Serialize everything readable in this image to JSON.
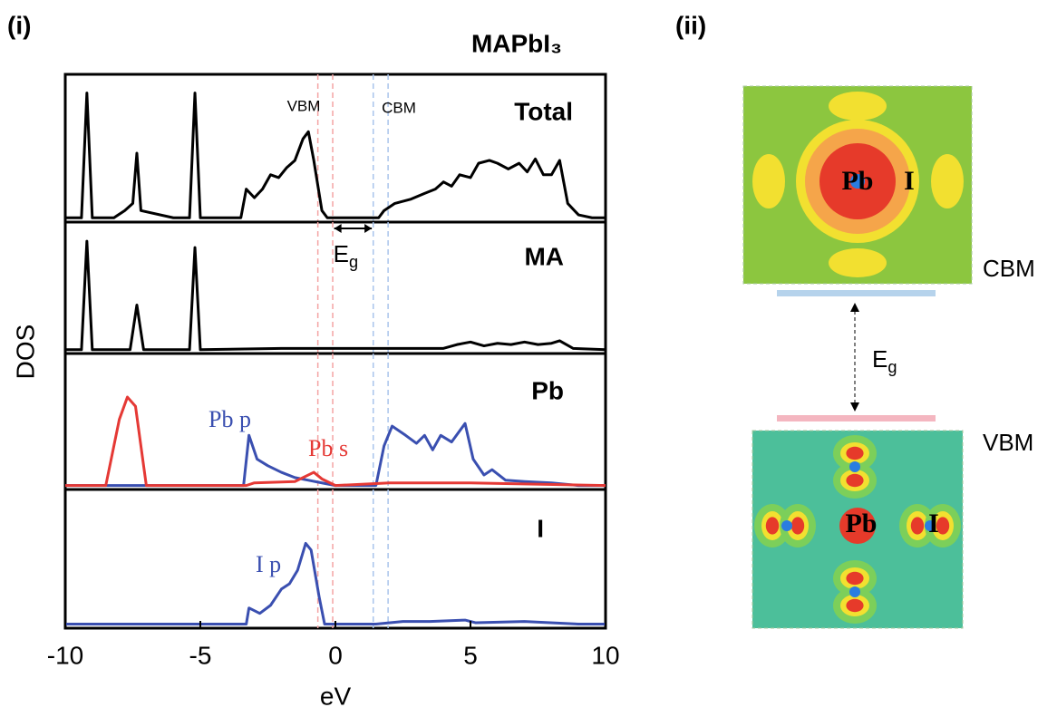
{
  "figure": {
    "panel_i_label": "(i)",
    "panel_ii_label": "(ii)",
    "compound": "MAPbI₃",
    "vbm_label": "VBM",
    "cbm_label": "CBM",
    "eg_symbol": "E",
    "eg_subscript": "g",
    "reference_lines": [
      {
        "x": -0.65,
        "color": "#f4a3a3"
      },
      {
        "x": -0.1,
        "color": "#f4a3a3"
      },
      {
        "x": 1.4,
        "color": "#a9c4ec"
      },
      {
        "x": 1.95,
        "color": "#a9c4ec"
      }
    ],
    "panel_ii": {
      "cbm_label": "CBM",
      "vbm_label": "VBM",
      "eg_symbol": "E",
      "eg_subscript": "g",
      "cbm_atoms": [
        "Pb",
        "I"
      ],
      "vbm_atoms": [
        "Pb",
        "I"
      ]
    }
  },
  "chart_data": [
    {
      "type": "line",
      "title": "Total",
      "xlim": [
        -10,
        10
      ],
      "ylim": [
        -0.03,
        1
      ],
      "series": [
        {
          "color": "#000000",
          "x": [
            -10,
            -9.4,
            -9.2,
            -9.0,
            -8.2,
            -7.8,
            -7.5,
            -7.35,
            -7.2,
            -6,
            -5.4,
            -5.2,
            -5.0,
            -3.5,
            -3.3,
            -3.0,
            -2.7,
            -2.4,
            -2.1,
            -1.8,
            -1.5,
            -1.2,
            -1.0,
            -0.8,
            -0.5,
            -0.3,
            1.6,
            1.8,
            2.2,
            2.8,
            3.3,
            3.7,
            4.0,
            4.3,
            4.6,
            5.0,
            5.3,
            5.7,
            6.0,
            6.4,
            6.8,
            7.1,
            7.4,
            7.7,
            8.0,
            8.3,
            8.6,
            9.0,
            9.5,
            10
          ],
          "values": [
            0,
            0,
            0.87,
            0,
            0,
            0.05,
            0.1,
            0.45,
            0.05,
            0,
            0,
            0.87,
            0,
            0,
            0.2,
            0.14,
            0.2,
            0.3,
            0.28,
            0.35,
            0.4,
            0.55,
            0.6,
            0.4,
            0.05,
            0,
            0,
            0.05,
            0.1,
            0.13,
            0.17,
            0.2,
            0.25,
            0.22,
            0.3,
            0.28,
            0.38,
            0.4,
            0.38,
            0.34,
            0.38,
            0.32,
            0.41,
            0.3,
            0.3,
            0.4,
            0.1,
            0.02,
            0,
            0
          ]
        }
      ]
    },
    {
      "type": "line",
      "title": "MA",
      "xlim": [
        -10,
        10
      ],
      "ylim": [
        -0.03,
        1
      ],
      "series": [
        {
          "color": "#000000",
          "x": [
            -10,
            -9.4,
            -9.2,
            -9.0,
            -7.6,
            -7.35,
            -7.1,
            -5.4,
            -5.2,
            -5.0,
            -2.0,
            0,
            4.0,
            4.5,
            5.0,
            5.5,
            6.0,
            6.5,
            7.0,
            7.5,
            8.0,
            8.3,
            8.8,
            10
          ],
          "values": [
            0,
            0,
            0.85,
            0,
            0,
            0.35,
            0,
            0,
            0.8,
            0,
            0.01,
            0.01,
            0.01,
            0.04,
            0.06,
            0.03,
            0.05,
            0.04,
            0.06,
            0.04,
            0.05,
            0.07,
            0.01,
            0
          ]
        }
      ]
    },
    {
      "type": "line",
      "title": "Pb",
      "xlim": [
        -10,
        10
      ],
      "ylim": [
        -0.03,
        1
      ],
      "series": [
        {
          "name": "Pb p",
          "color": "#3a4fb0",
          "x": [
            -10,
            -3.4,
            -3.2,
            -2.9,
            -2.5,
            -2.0,
            -1.5,
            -1.0,
            -0.5,
            0,
            1.5,
            1.8,
            2.1,
            2.6,
            3.0,
            3.3,
            3.6,
            3.9,
            4.3,
            4.8,
            5.1,
            5.5,
            5.8,
            6.3,
            7.0,
            8.0,
            9.0,
            10
          ],
          "values": [
            0,
            0,
            0.38,
            0.2,
            0.15,
            0.1,
            0.06,
            0.04,
            0.02,
            0,
            0,
            0.3,
            0.45,
            0.38,
            0.32,
            0.38,
            0.27,
            0.38,
            0.33,
            0.47,
            0.2,
            0.08,
            0.12,
            0.04,
            0.03,
            0.02,
            0,
            0
          ]
        },
        {
          "name": "Pb s",
          "color": "#e53935",
          "x": [
            -10,
            -8.5,
            -8.0,
            -7.7,
            -7.4,
            -7.0,
            -3.3,
            -3.0,
            -1.5,
            -0.8,
            -0.5,
            0,
            2.0,
            5.0,
            10
          ],
          "values": [
            0,
            0,
            0.5,
            0.67,
            0.6,
            0,
            0,
            0.02,
            0.03,
            0.1,
            0.05,
            0,
            0.02,
            0.02,
            0
          ]
        }
      ]
    },
    {
      "type": "line",
      "title": "I",
      "xlabel": "eV",
      "ylabel": "DOS",
      "xlim": [
        -10,
        10
      ],
      "ylim": [
        -0.03,
        1
      ],
      "xticks": [
        -10,
        -5,
        0,
        5,
        10
      ],
      "series": [
        {
          "name": "I p",
          "color": "#3a4fb0",
          "x": [
            -10,
            -3.3,
            -3.2,
            -2.8,
            -2.4,
            -2.0,
            -1.7,
            -1.4,
            -1.1,
            -0.9,
            -0.6,
            -0.4,
            1.5,
            2.5,
            3.5,
            4.8,
            5.2,
            7.0,
            9.0,
            10
          ],
          "values": [
            0,
            0,
            0.12,
            0.08,
            0.14,
            0.26,
            0.3,
            0.4,
            0.6,
            0.55,
            0.2,
            0,
            0,
            0.02,
            0.02,
            0.03,
            0.01,
            0.02,
            0,
            0
          ]
        }
      ]
    }
  ]
}
